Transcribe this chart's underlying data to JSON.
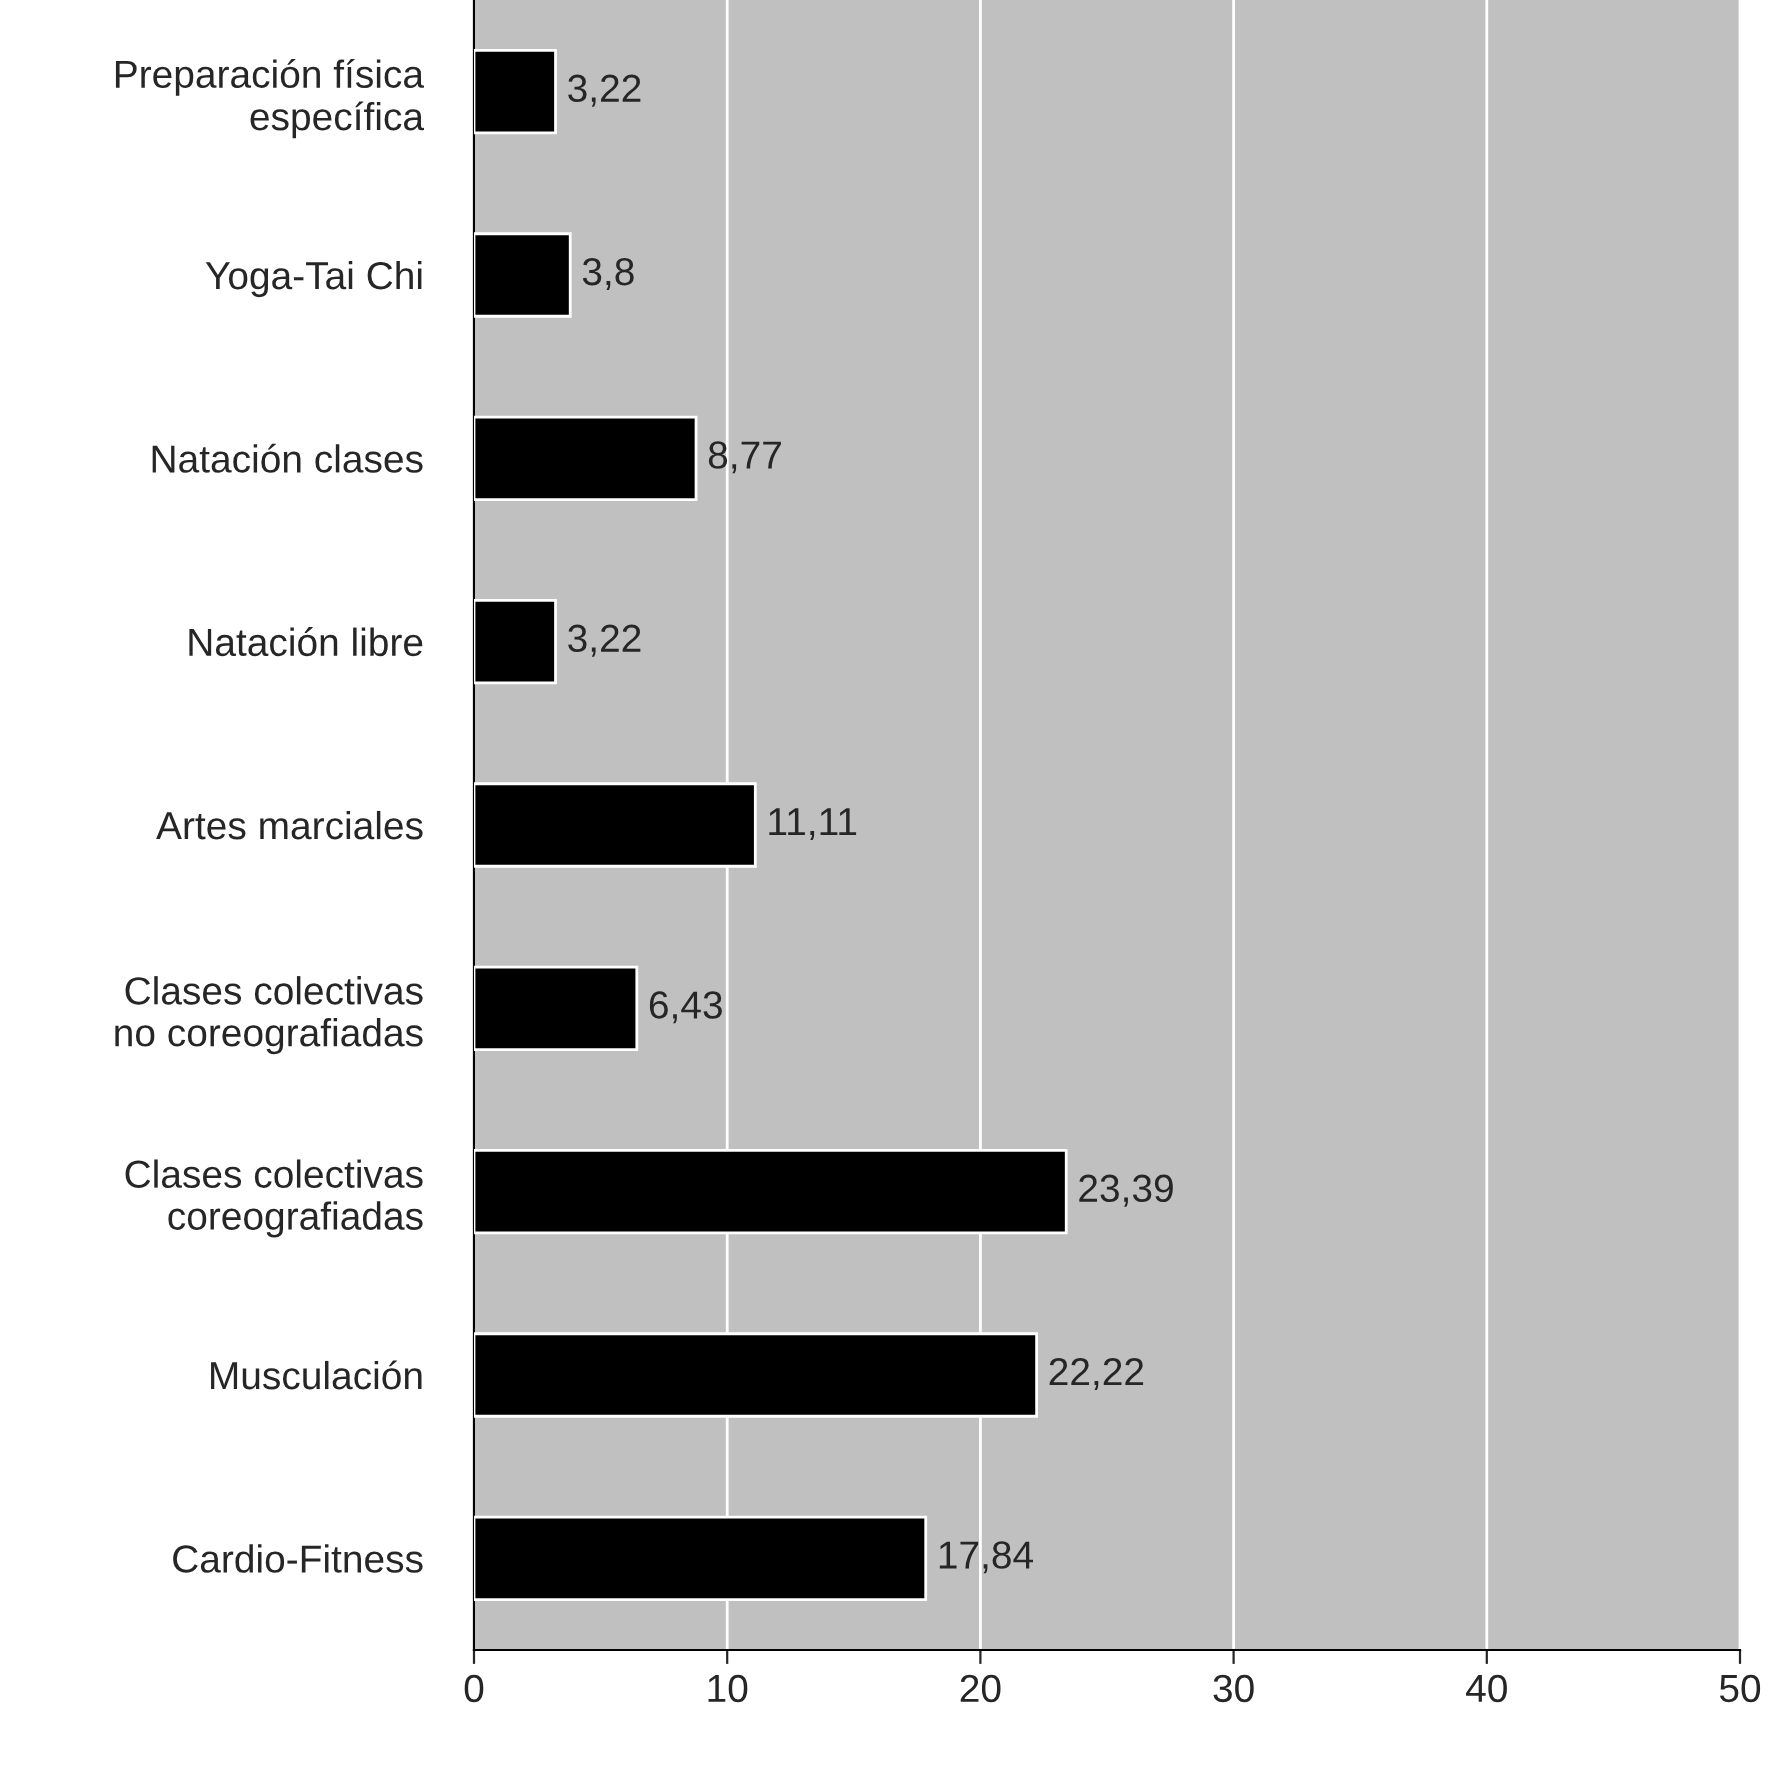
{
  "chart_data": {
    "type": "bar",
    "orientation": "horizontal",
    "categories": [
      "Preparación física\nespecífica",
      "Yoga-Tai Chi",
      "Natación clases",
      "Natación libre",
      "Artes marciales",
      "Clases colectivas\nno coreografiadas",
      "Clases colectivas\ncoreografiadas",
      "Musculación",
      "Cardio-Fitness"
    ],
    "values": [
      3.22,
      3.8,
      8.77,
      3.22,
      11.11,
      6.43,
      23.39,
      22.22,
      17.84
    ],
    "value_labels": [
      "3,22",
      "3,8",
      "8,77",
      "3,22",
      "11,11",
      "6,43",
      "23,39",
      "22,22",
      "17,84"
    ],
    "color": "#000000",
    "xlim": [
      0,
      50
    ],
    "xticks": [
      0,
      10,
      20,
      30,
      40,
      50
    ],
    "grid": "x",
    "legend": false
  }
}
